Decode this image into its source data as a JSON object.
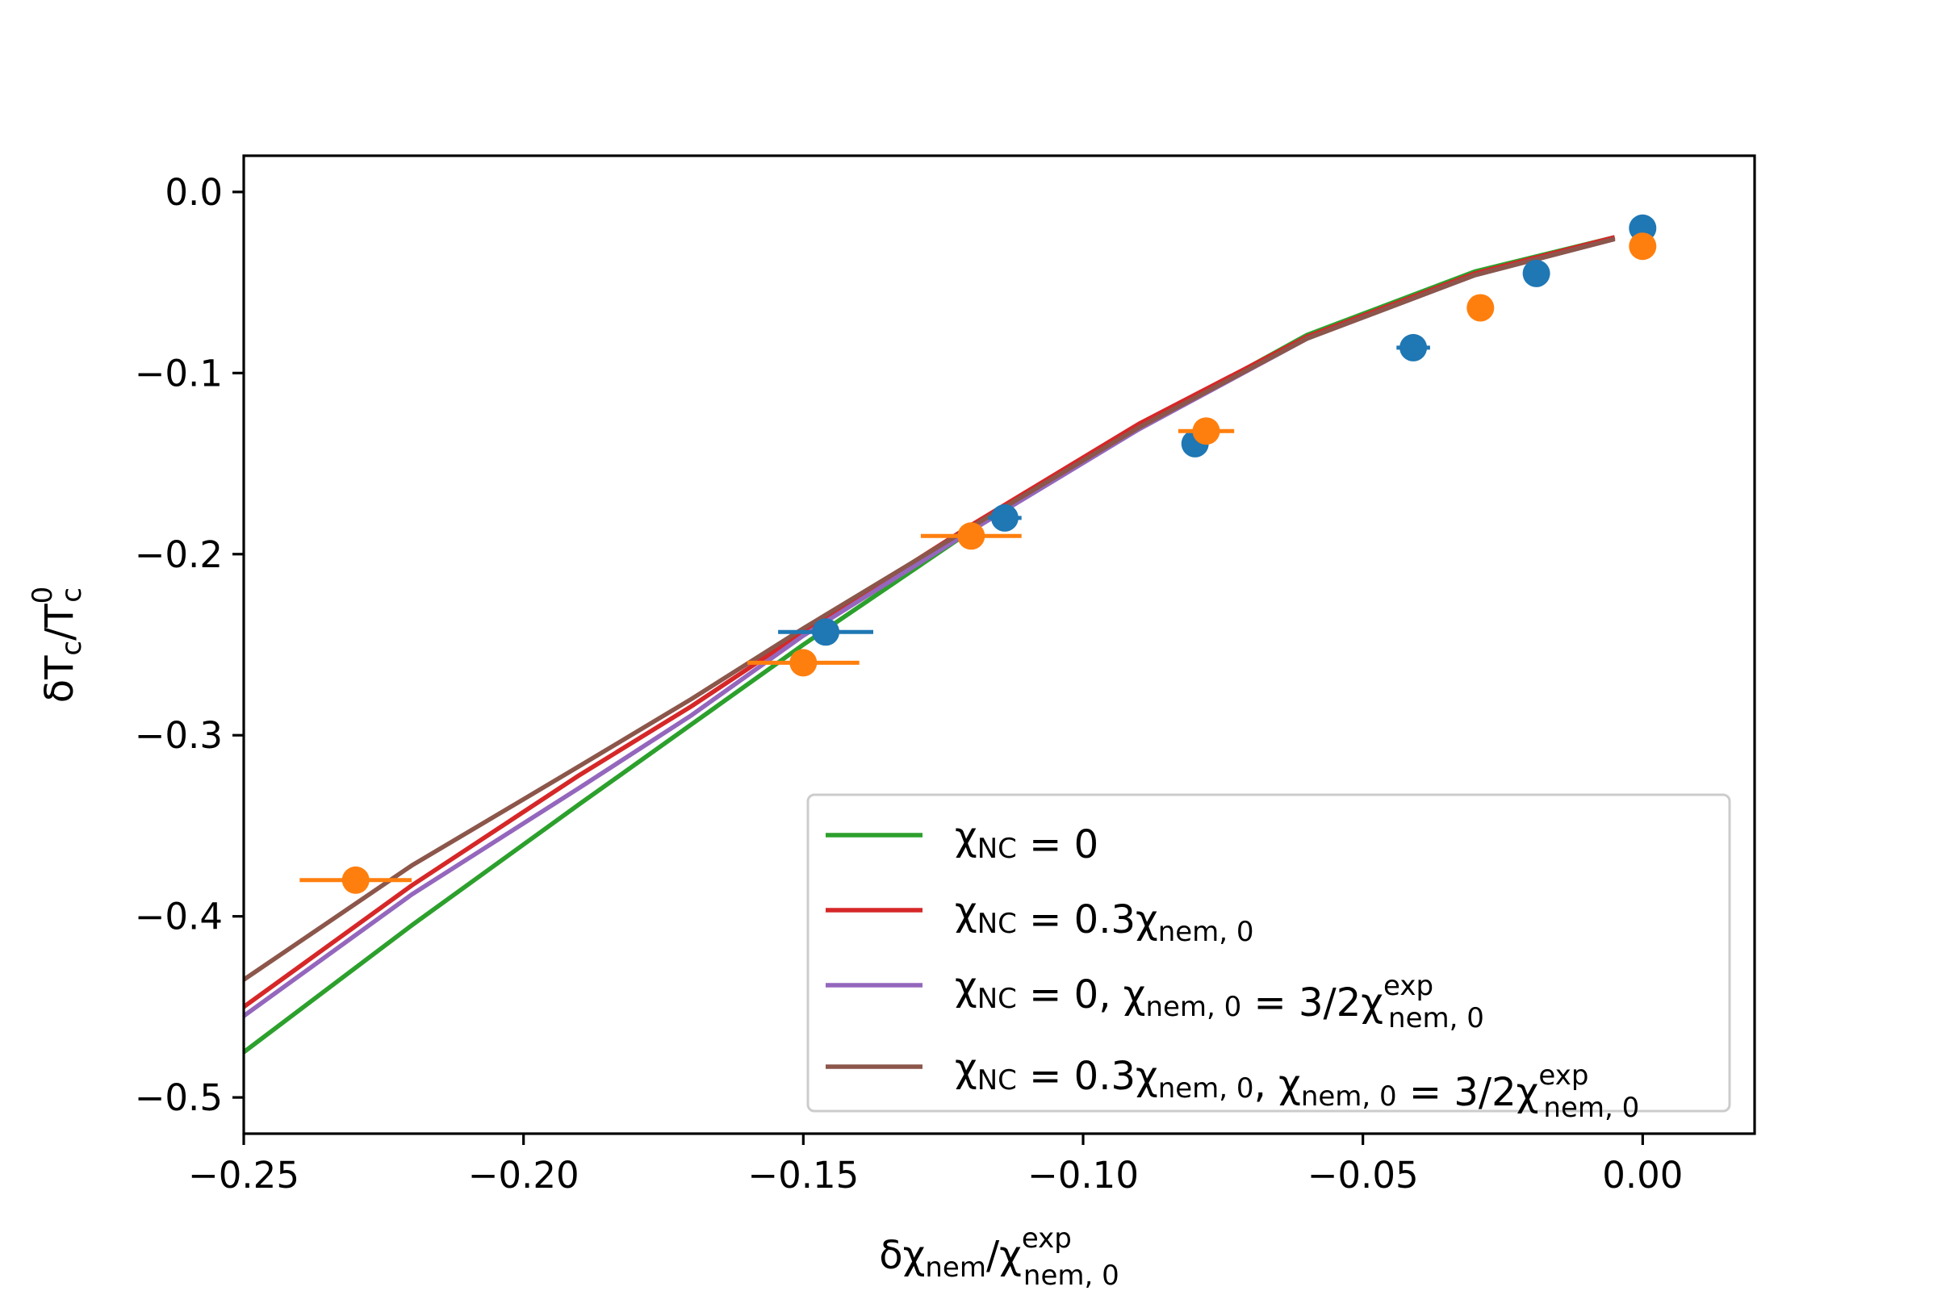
{
  "chart_data": {
    "type": "scatter",
    "title": "",
    "xlabel": "δχ_nem/χ^exp_nem,0",
    "ylabel": "δT_c/T^0_c",
    "xlabel_parts": {
      "base": "δχ",
      "sub1": "nem",
      "mid": "/χ",
      "sup": "exp",
      "sub2": "nem, 0"
    },
    "ylabel_parts": {
      "base": "δT",
      "sub1": "c",
      "mid": "/T",
      "sup": "0",
      "sub2": "c"
    },
    "xlim": [
      -0.25,
      0.02
    ],
    "ylim": [
      -0.52,
      0.02
    ],
    "xticks": [
      -0.25,
      -0.2,
      -0.15,
      -0.1,
      -0.05,
      0.0
    ],
    "xtick_labels": [
      "−0.25",
      "−0.20",
      "−0.15",
      "−0.10",
      "−0.05",
      "0.00"
    ],
    "yticks": [
      0.0,
      -0.1,
      -0.2,
      -0.3,
      -0.4,
      -0.5
    ],
    "ytick_labels": [
      "0.0",
      "−0.1",
      "−0.2",
      "−0.3",
      "−0.4",
      "−0.5"
    ],
    "legend_position": "lower right",
    "points": [
      {
        "name": "data-set-1",
        "color": "#1f77b4",
        "x": [
          -0.146,
          -0.114,
          -0.08,
          -0.041,
          -0.019,
          0.0
        ],
        "y": [
          -0.243,
          -0.18,
          -0.139,
          -0.086,
          -0.045,
          -0.02
        ],
        "xerr": [
          0.0085,
          0.003,
          0.002,
          0.003,
          0.001,
          0.0
        ]
      },
      {
        "name": "data-set-2",
        "color": "#ff7f0e",
        "x": [
          -0.23,
          -0.15,
          -0.12,
          -0.078,
          -0.029,
          0.0
        ],
        "y": [
          -0.38,
          -0.26,
          -0.19,
          -0.132,
          -0.064,
          -0.03
        ],
        "xerr": [
          0.01,
          0.01,
          0.009,
          0.005,
          0.0,
          0.0
        ]
      }
    ],
    "series": [
      {
        "label": "χ_NC = 0",
        "label_parts": [
          {
            "t": "χ"
          },
          {
            "t": "NC",
            "sub": true
          },
          {
            "t": " = 0"
          }
        ],
        "color": "#2ca02c",
        "x": [
          -0.25,
          -0.22,
          -0.19,
          -0.17,
          -0.15,
          -0.12,
          -0.09,
          -0.06,
          -0.03,
          -0.005
        ],
        "y": [
          -0.475,
          -0.405,
          -0.338,
          -0.294,
          -0.25,
          -0.187,
          -0.13,
          -0.079,
          -0.044,
          -0.025
        ]
      },
      {
        "label": "χ_NC = 0.3χ_nem,0",
        "label_parts": [
          {
            "t": "χ"
          },
          {
            "t": "NC",
            "sub": true
          },
          {
            "t": " = 0.3χ"
          },
          {
            "t": "nem, 0",
            "sub": true
          }
        ],
        "color": "#d62728",
        "x": [
          -0.25,
          -0.22,
          -0.19,
          -0.17,
          -0.15,
          -0.12,
          -0.09,
          -0.06,
          -0.03,
          -0.005
        ],
        "y": [
          -0.45,
          -0.383,
          -0.322,
          -0.284,
          -0.243,
          -0.184,
          -0.128,
          -0.08,
          -0.045,
          -0.025
        ]
      },
      {
        "label": "χ_NC = 0, χ_nem,0 = 3/2χ^exp_nem,0",
        "label_parts": [
          {
            "t": "χ"
          },
          {
            "t": "NC",
            "sub": true
          },
          {
            "t": " = 0, χ"
          },
          {
            "t": "nem, 0",
            "sub": true
          },
          {
            "t": " = 3/2χ"
          },
          {
            "t": "exp",
            "sup": true,
            "sub2": "nem, 0"
          }
        ],
        "color": "#9467bd",
        "x": [
          -0.25,
          -0.22,
          -0.19,
          -0.17,
          -0.15,
          -0.12,
          -0.09,
          -0.06,
          -0.03,
          -0.005
        ],
        "y": [
          -0.455,
          -0.388,
          -0.329,
          -0.289,
          -0.245,
          -0.187,
          -0.131,
          -0.081,
          -0.046,
          -0.026
        ]
      },
      {
        "label": "χ_NC = 0.3χ_nem,0, χ_nem,0 = 3/2χ^exp_nem,0",
        "label_parts": [
          {
            "t": "χ"
          },
          {
            "t": "NC",
            "sub": true
          },
          {
            "t": " = 0.3χ"
          },
          {
            "t": "nem, 0",
            "sub": true
          },
          {
            "t": ", χ"
          },
          {
            "t": "nem, 0",
            "sub": true
          },
          {
            "t": " = 3/2χ"
          },
          {
            "t": "exp",
            "sup": true,
            "sub2": "nem, 0"
          }
        ],
        "color": "#8c564b",
        "x": [
          -0.25,
          -0.22,
          -0.19,
          -0.17,
          -0.15,
          -0.12,
          -0.09,
          -0.06,
          -0.03,
          -0.005
        ],
        "y": [
          -0.435,
          -0.372,
          -0.317,
          -0.28,
          -0.241,
          -0.185,
          -0.13,
          -0.081,
          -0.046,
          -0.026
        ]
      }
    ]
  }
}
